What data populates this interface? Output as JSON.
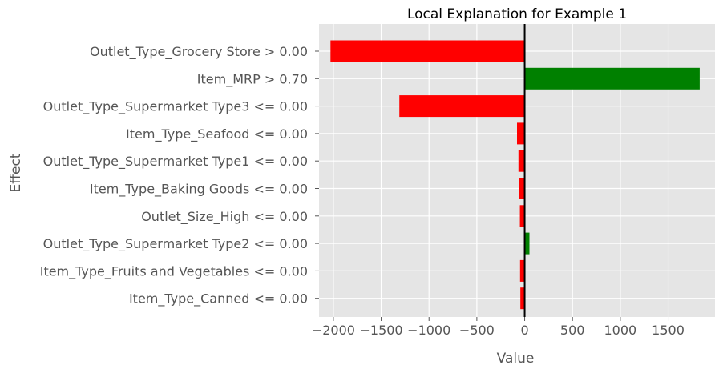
{
  "chart_data": {
    "type": "bar",
    "orientation": "horizontal",
    "title": "Local Explanation for Example 1",
    "xlabel": "Value",
    "ylabel": "Effect",
    "xlim": [
      -2150,
      1990
    ],
    "xticks": [
      -2000,
      -1500,
      -1000,
      -500,
      0,
      500,
      1000,
      1500
    ],
    "xtick_labels": [
      "−2000",
      "−1500",
      "−1000",
      "−500",
      "0",
      "500",
      "1000",
      "1500"
    ],
    "grid": true,
    "positive_color": "#008000",
    "negative_color": "#ff0000",
    "background_color": "#e5e5e5",
    "categories": [
      "Outlet_Type_Grocery Store > 0.00",
      "Item_MRP > 0.70",
      "Outlet_Type_Supermarket Type3 <= 0.00",
      "Item_Type_Seafood <= 0.00",
      "Outlet_Type_Supermarket Type1 <= 0.00",
      "Item_Type_Baking Goods <= 0.00",
      "Outlet_Size_High <= 0.00",
      "Outlet_Type_Supermarket Type2 <= 0.00",
      "Item_Type_Fruits and Vegetables <= 0.00",
      "Item_Type_Canned <= 0.00"
    ],
    "values": [
      -2030,
      1830,
      -1310,
      -80,
      -65,
      -55,
      -50,
      50,
      -48,
      -45
    ]
  }
}
